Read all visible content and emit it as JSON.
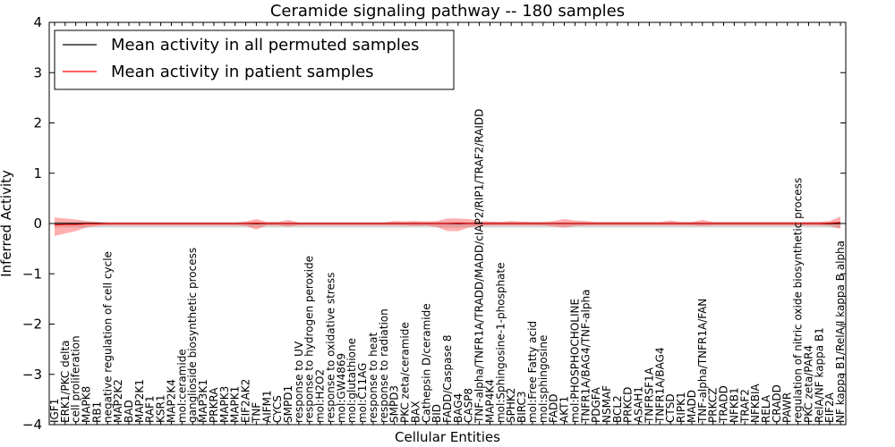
{
  "chart_data": {
    "type": "line",
    "title": "Ceramide signaling pathway -- 180 samples",
    "xlabel": "Cellular Entities",
    "ylabel": "Inferred Activity",
    "ylim": [
      -4,
      4
    ],
    "yticks": [
      -4,
      -3,
      -2,
      -1,
      0,
      1,
      2,
      3,
      4
    ],
    "legend_position": "top-left",
    "categories": [
      "IGF1",
      "ERK1/PKC delta",
      "cell proliferation",
      "MAPK8",
      "RB1",
      "negative regulation of cell cycle",
      "MAP2K2",
      "BAD",
      "MAP2K1",
      "RAF1",
      "KSR1",
      "MAP2K4",
      "mol:ceramide",
      "ganglioside biosynthetic process",
      "MAP3K1",
      "PRKRA",
      "MAPK3",
      "MAPK1",
      "EIF2AK2",
      "TNF",
      "AIFM1",
      "CYCS",
      "SMPD1",
      "response to UV",
      "response to hydrogen peroxide",
      "mol:H2O2",
      "response to oxidative stress",
      "mol:GW4869",
      "mol:glutathione",
      "mol:C11AG",
      "response to heat",
      "response to radiation",
      "SMPD3",
      "PKC zeta/ceramide",
      "BAX",
      "Cathepsin D/ceramide",
      "BID",
      "FADD/Caspase 8",
      "BAG4",
      "CASP8",
      "TNF-alpha/TNFR1A/TRADD/MADD/cIAP2/RIP1/TRAF2/RAIDD",
      "MAP4K4",
      "mol:Sphingosine-1-phosphate",
      "SPHK2",
      "BIRC3",
      "mol:Free Fatty acid",
      "mol:sphingosine",
      "FADD",
      "AKT1",
      "mol:PHOSPHOCHOLINE",
      "TNFR1A/BAG4/TNF-alpha",
      "PDGFA",
      "NSMAF",
      "BCL2",
      "PRKCD",
      "ASAH1",
      "TNFRSF1A",
      "TNFR1A/BAG4",
      "CTSD",
      "RIPK1",
      "MADD",
      "TNF-alpha/TNFR1A/FAN",
      "PRKCZ",
      "TRADD",
      "NFKB1",
      "TRAF2",
      "NFKBIA",
      "RELA",
      "CRADD",
      "PAWR",
      "regulation of nitric oxide biosynthetic process",
      "PKC zeta/PAR4",
      "RelA/NF kappa B1",
      "EIF2A",
      "NF kappa B1/RelA/I kappa B alpha"
    ],
    "series": [
      {
        "name": "Mean activity in all permuted samples",
        "color": "#000000",
        "values": [
          0.0,
          0.0,
          0.0,
          0.0,
          0.0,
          0.0,
          0.0,
          0.0,
          0.0,
          0.0,
          0.0,
          0.0,
          0.0,
          0.0,
          0.0,
          0.0,
          0.0,
          0.0,
          0.0,
          0.0,
          0.0,
          0.0,
          0.0,
          0.0,
          0.0,
          0.0,
          0.0,
          0.0,
          0.0,
          0.0,
          0.0,
          0.0,
          0.0,
          0.0,
          0.0,
          0.0,
          0.0,
          0.0,
          0.0,
          0.0,
          0.0,
          0.0,
          0.0,
          0.0,
          0.0,
          0.0,
          0.0,
          0.0,
          0.0,
          0.0,
          0.0,
          0.0,
          0.0,
          0.0,
          0.0,
          0.0,
          0.0,
          0.0,
          0.0,
          0.0,
          0.0,
          0.0,
          0.0,
          0.0,
          0.0,
          0.0,
          0.0,
          0.0,
          0.0,
          0.0,
          0.0,
          0.0,
          0.0,
          0.0,
          0.0
        ],
        "band_upper": [
          0.03,
          0.03,
          0.03,
          0.03,
          0.03,
          0.03,
          0.03,
          0.03,
          0.03,
          0.03,
          0.03,
          0.03,
          0.03,
          0.03,
          0.03,
          0.03,
          0.03,
          0.03,
          0.03,
          0.03,
          0.03,
          0.03,
          0.03,
          0.03,
          0.03,
          0.03,
          0.03,
          0.03,
          0.03,
          0.03,
          0.03,
          0.03,
          0.03,
          0.03,
          0.03,
          0.03,
          0.03,
          0.03,
          0.03,
          0.03,
          0.03,
          0.03,
          0.03,
          0.03,
          0.03,
          0.03,
          0.03,
          0.03,
          0.03,
          0.03,
          0.03,
          0.03,
          0.03,
          0.03,
          0.03,
          0.03,
          0.03,
          0.03,
          0.03,
          0.03,
          0.03,
          0.03,
          0.03,
          0.03,
          0.03,
          0.03,
          0.03,
          0.03,
          0.03,
          0.03,
          0.03,
          0.03,
          0.03,
          0.03,
          0.03
        ],
        "band_lower": [
          -0.08,
          -0.08,
          -0.08,
          -0.08,
          -0.08,
          -0.08,
          -0.08,
          -0.08,
          -0.08,
          -0.08,
          -0.08,
          -0.08,
          -0.08,
          -0.08,
          -0.08,
          -0.08,
          -0.08,
          -0.08,
          -0.08,
          -0.08,
          -0.08,
          -0.08,
          -0.08,
          -0.08,
          -0.08,
          -0.08,
          -0.08,
          -0.08,
          -0.08,
          -0.08,
          -0.08,
          -0.08,
          -0.08,
          -0.08,
          -0.08,
          -0.08,
          -0.08,
          -0.08,
          -0.08,
          -0.08,
          -0.08,
          -0.08,
          -0.08,
          -0.08,
          -0.08,
          -0.08,
          -0.08,
          -0.08,
          -0.08,
          -0.08,
          -0.08,
          -0.08,
          -0.08,
          -0.08,
          -0.08,
          -0.08,
          -0.08,
          -0.08,
          -0.08,
          -0.08,
          -0.08,
          -0.08,
          -0.08,
          -0.08,
          -0.08,
          -0.08,
          -0.08,
          -0.08,
          -0.08,
          -0.08,
          -0.08,
          -0.08,
          -0.08,
          -0.08,
          -0.1
        ]
      },
      {
        "name": "Mean activity in patient samples",
        "color": "#ff0000",
        "values": [
          -0.03,
          -0.02,
          -0.02,
          -0.01,
          -0.01,
          0.0,
          0.0,
          0.0,
          0.0,
          0.0,
          0.0,
          0.0,
          0.0,
          0.0,
          0.0,
          0.0,
          0.0,
          0.0,
          0.0,
          0.01,
          0.0,
          0.0,
          0.0,
          0.0,
          0.0,
          0.0,
          0.0,
          0.0,
          0.0,
          0.0,
          0.0,
          0.0,
          0.0,
          0.0,
          0.0,
          0.0,
          0.0,
          0.0,
          0.01,
          0.0,
          0.0,
          0.0,
          0.0,
          0.0,
          0.0,
          0.0,
          0.0,
          0.0,
          0.0,
          0.0,
          0.0,
          0.0,
          0.0,
          0.0,
          0.0,
          0.0,
          0.0,
          0.0,
          0.0,
          0.0,
          0.0,
          0.0,
          0.0,
          0.0,
          0.0,
          0.0,
          0.0,
          0.0,
          0.0,
          0.0,
          0.0,
          0.0,
          0.0,
          0.01,
          0.02
        ],
        "band_upper": [
          0.12,
          0.1,
          0.08,
          0.05,
          0.03,
          0.02,
          0.02,
          0.02,
          0.02,
          0.02,
          0.02,
          0.02,
          0.02,
          0.02,
          0.02,
          0.02,
          0.02,
          0.02,
          0.04,
          0.09,
          0.03,
          0.03,
          0.07,
          0.02,
          0.02,
          0.02,
          0.02,
          0.02,
          0.02,
          0.02,
          0.02,
          0.02,
          0.05,
          0.04,
          0.05,
          0.04,
          0.05,
          0.1,
          0.1,
          0.09,
          0.05,
          0.04,
          0.03,
          0.05,
          0.04,
          0.03,
          0.03,
          0.05,
          0.09,
          0.06,
          0.05,
          0.03,
          0.03,
          0.03,
          0.03,
          0.03,
          0.03,
          0.03,
          0.06,
          0.03,
          0.03,
          0.07,
          0.03,
          0.03,
          0.03,
          0.03,
          0.03,
          0.03,
          0.03,
          0.03,
          0.03,
          0.03,
          0.03,
          0.05,
          0.14
        ],
        "band_lower": [
          -0.25,
          -0.2,
          -0.15,
          -0.08,
          -0.05,
          -0.04,
          -0.04,
          -0.04,
          -0.04,
          -0.04,
          -0.04,
          -0.04,
          -0.04,
          -0.04,
          -0.04,
          -0.04,
          -0.04,
          -0.04,
          -0.05,
          -0.12,
          -0.04,
          -0.04,
          -0.06,
          -0.04,
          -0.04,
          -0.04,
          -0.04,
          -0.04,
          -0.04,
          -0.04,
          -0.04,
          -0.04,
          -0.04,
          -0.04,
          -0.05,
          -0.04,
          -0.07,
          -0.15,
          -0.15,
          -0.08,
          -0.05,
          -0.04,
          -0.04,
          -0.04,
          -0.04,
          -0.04,
          -0.04,
          -0.06,
          -0.08,
          -0.05,
          -0.04,
          -0.04,
          -0.04,
          -0.04,
          -0.04,
          -0.04,
          -0.04,
          -0.04,
          -0.04,
          -0.04,
          -0.04,
          -0.05,
          -0.04,
          -0.04,
          -0.04,
          -0.04,
          -0.04,
          -0.04,
          -0.04,
          -0.04,
          -0.04,
          -0.04,
          -0.04,
          -0.05,
          -0.1
        ]
      }
    ]
  }
}
